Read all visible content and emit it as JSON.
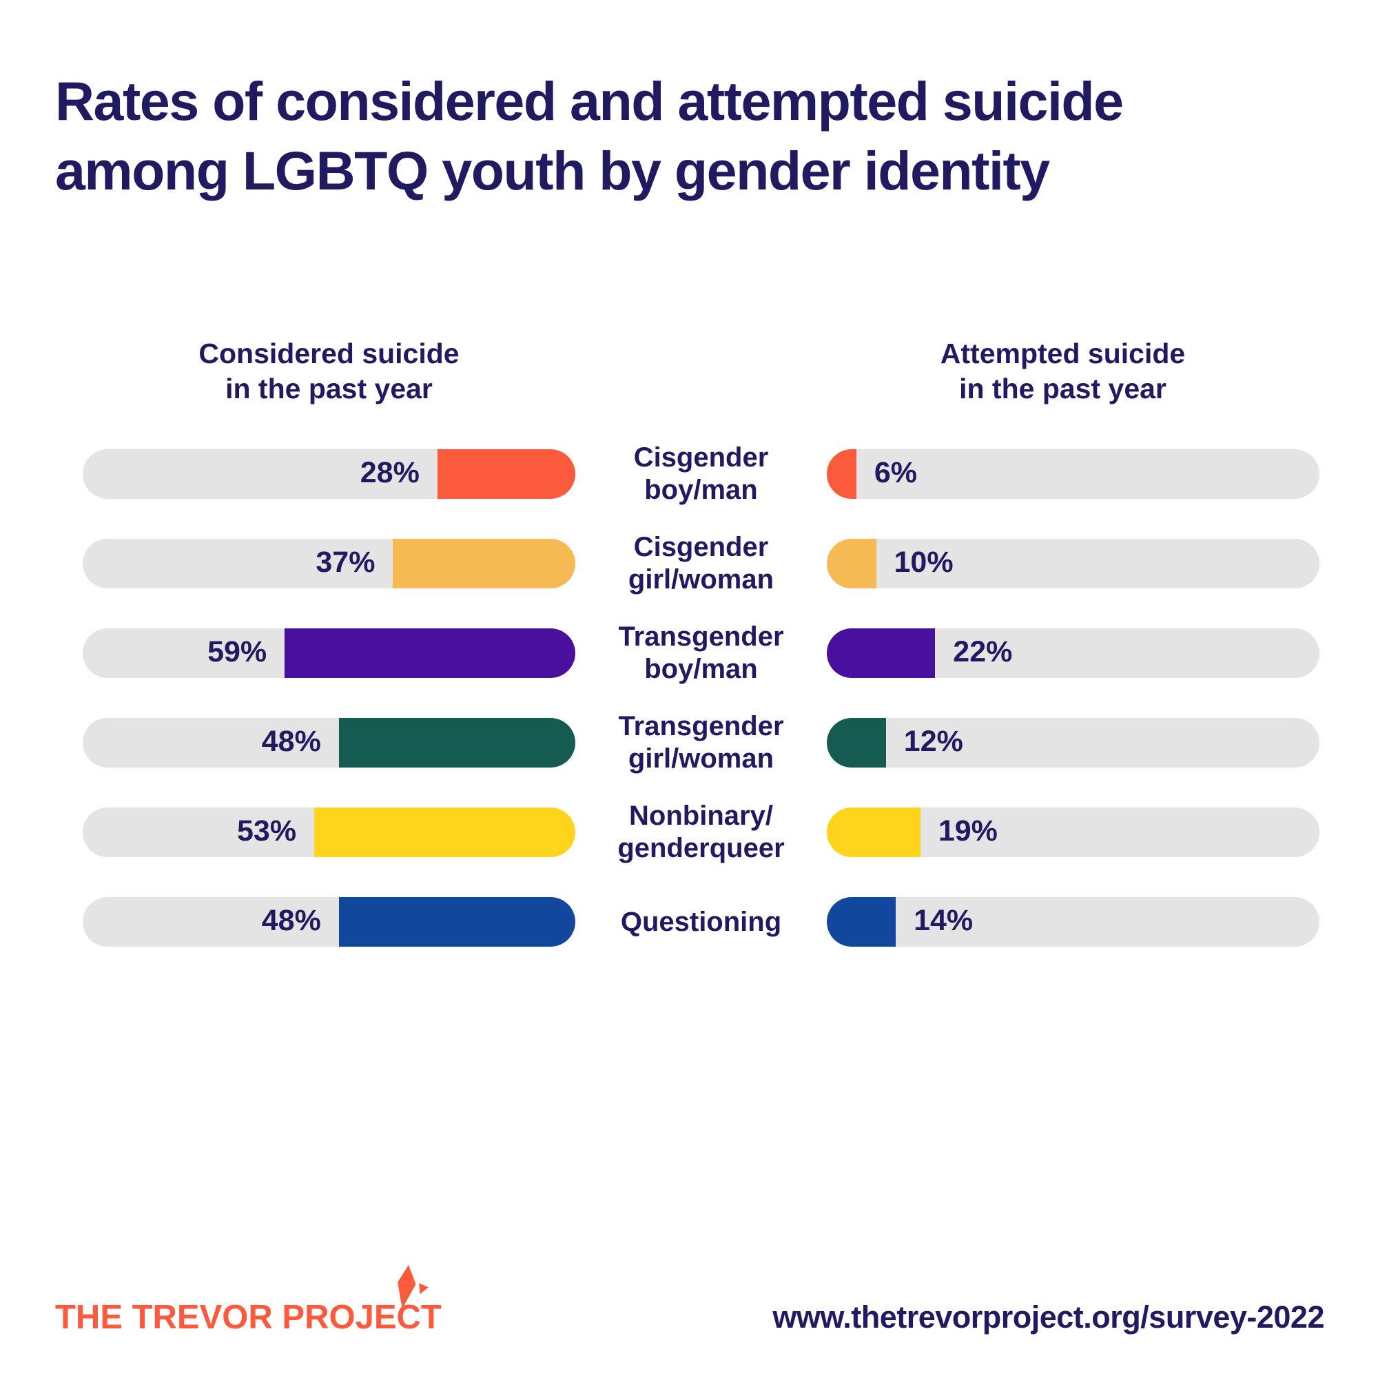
{
  "title_lines": [
    "Rates of considered and attempted suicide",
    "among LGBTQ youth by gender identity"
  ],
  "columns": {
    "considered": {
      "label_line1": "Considered suicide",
      "label_line2": "in the past year"
    },
    "attempted": {
      "label_line1": "Attempted suicide",
      "label_line2": "in the past year"
    }
  },
  "chart_data": {
    "type": "bar",
    "orientation": "horizontal-paired",
    "unit": "%",
    "xlim": [
      0,
      100
    ],
    "track_color": "#E4E4E4",
    "categories": [
      "Cisgender boy/man",
      "Cisgender girl/woman",
      "Transgender boy/man",
      "Transgender girl/woman",
      "Nonbinary/genderqueer",
      "Questioning"
    ],
    "series": [
      {
        "name": "Considered suicide in the past year",
        "values": [
          28,
          37,
          59,
          48,
          53,
          48
        ]
      },
      {
        "name": "Attempted suicide in the past year",
        "values": [
          6,
          10,
          22,
          12,
          19,
          14
        ]
      }
    ],
    "rows": [
      {
        "label_lines": [
          "Cisgender",
          "boy/man"
        ],
        "considered": 28,
        "attempted": 6,
        "considered_pct": "28%",
        "attempted_pct": "6%",
        "color": "#FC5A3D"
      },
      {
        "label_lines": [
          "Cisgender",
          "girl/woman"
        ],
        "considered": 37,
        "attempted": 10,
        "considered_pct": "37%",
        "attempted_pct": "10%",
        "color": "#F6BA55"
      },
      {
        "label_lines": [
          "Transgender",
          "boy/man"
        ],
        "considered": 59,
        "attempted": 22,
        "considered_pct": "59%",
        "attempted_pct": "22%",
        "color": "#48109C"
      },
      {
        "label_lines": [
          "Transgender",
          "girl/woman"
        ],
        "considered": 48,
        "attempted": 12,
        "considered_pct": "48%",
        "attempted_pct": "12%",
        "color": "#155B52"
      },
      {
        "label_lines": [
          "Nonbinary/",
          "genderqueer"
        ],
        "considered": 53,
        "attempted": 19,
        "considered_pct": "53%",
        "attempted_pct": "19%",
        "color": "#FFD41C"
      },
      {
        "label_lines": [
          "Questioning"
        ],
        "considered": 48,
        "attempted": 14,
        "considered_pct": "48%",
        "attempted_pct": "14%",
        "color": "#11489E"
      }
    ]
  },
  "footer": {
    "logo_text": "THE TREVOR PROJECT",
    "url": "www.thetrevorproject.org/survey-2022"
  },
  "colors": {
    "navy": "#201A61",
    "orange": "#FC5A3D",
    "background": "#FFFFFF"
  }
}
